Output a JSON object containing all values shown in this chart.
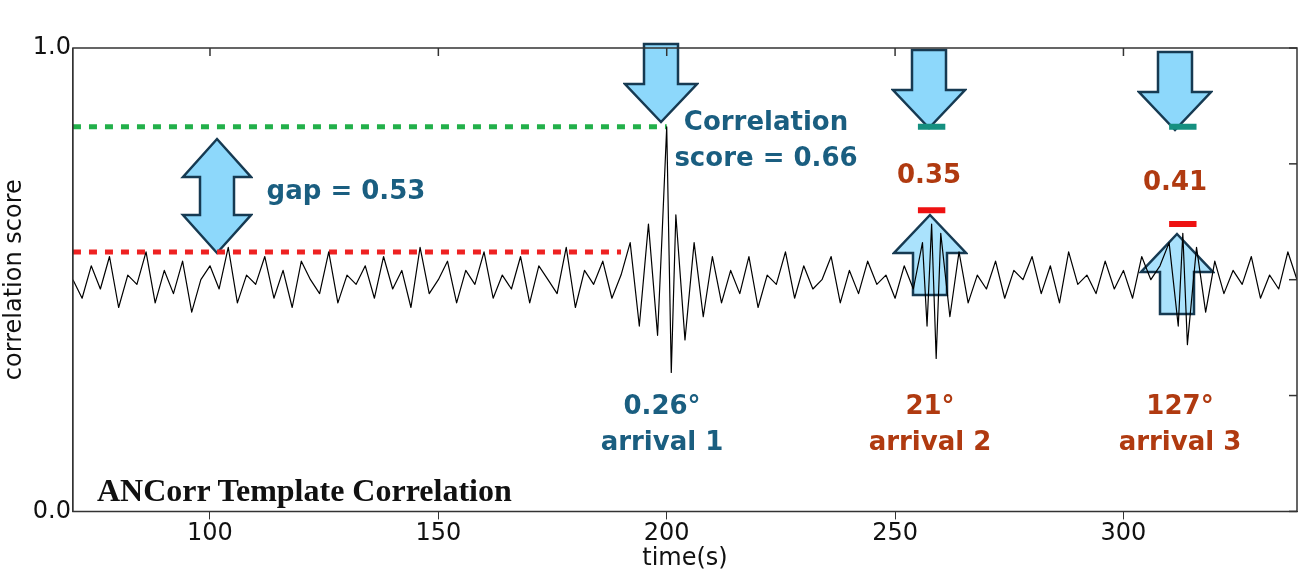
{
  "chart_data": {
    "type": "line",
    "title": "ANCorr Template Correlation",
    "xlabel": "time(s)",
    "ylabel": "correlation score",
    "xlim": [
      70,
      338
    ],
    "xticks": [
      100,
      150,
      200,
      250,
      300
    ],
    "ylim": [
      0,
      1
    ],
    "yticks": [
      {
        "value": 0,
        "label": "0.0"
      },
      {
        "value": 0.25,
        "label": null
      },
      {
        "value": 0.5,
        "label": null
      },
      {
        "value": 0.75,
        "label": null
      },
      {
        "value": 1,
        "label": "1.0"
      }
    ],
    "grid": false,
    "legend": false,
    "marker": "none",
    "series": [
      {
        "color": "#000000",
        "line_style": "solid",
        "x": [
          70,
          72,
          74,
          76,
          78,
          80,
          82,
          84,
          86,
          88,
          90,
          92,
          94,
          96,
          98,
          100,
          102,
          104,
          106,
          108,
          110,
          112,
          114,
          116,
          118,
          120,
          122,
          124,
          126,
          128,
          130,
          132,
          134,
          136,
          138,
          140,
          142,
          144,
          146,
          148,
          150,
          152,
          154,
          156,
          158,
          160,
          162,
          164,
          166,
          168,
          170,
          172,
          174,
          176,
          178,
          180,
          182,
          184,
          186,
          188,
          190,
          192,
          194,
          196,
          198,
          199,
          200,
          201,
          202,
          204,
          206,
          208,
          210,
          212,
          214,
          216,
          218,
          220,
          222,
          224,
          226,
          228,
          230,
          232,
          234,
          236,
          238,
          240,
          242,
          244,
          246,
          248,
          250,
          252,
          254,
          256,
          257,
          258,
          259,
          260,
          262,
          264,
          266,
          268,
          270,
          272,
          274,
          276,
          278,
          280,
          282,
          284,
          286,
          288,
          290,
          292,
          294,
          296,
          298,
          300,
          302,
          304,
          306,
          308,
          310,
          312,
          313,
          314,
          316,
          318,
          320,
          322,
          324,
          326,
          328,
          330,
          332,
          334,
          336,
          338
        ],
        "values": [
          0.5,
          0.46,
          0.53,
          0.48,
          0.55,
          0.44,
          0.51,
          0.49,
          0.56,
          0.45,
          0.52,
          0.47,
          0.54,
          0.43,
          0.5,
          0.53,
          0.48,
          0.57,
          0.45,
          0.51,
          0.49,
          0.55,
          0.46,
          0.52,
          0.44,
          0.54,
          0.5,
          0.47,
          0.56,
          0.45,
          0.51,
          0.49,
          0.53,
          0.46,
          0.55,
          0.48,
          0.52,
          0.44,
          0.57,
          0.47,
          0.5,
          0.54,
          0.45,
          0.52,
          0.49,
          0.56,
          0.46,
          0.51,
          0.48,
          0.55,
          0.45,
          0.53,
          0.5,
          0.47,
          0.57,
          0.44,
          0.52,
          0.49,
          0.54,
          0.46,
          0.51,
          0.58,
          0.4,
          0.62,
          0.38,
          0.6,
          0.83,
          0.3,
          0.64,
          0.37,
          0.58,
          0.42,
          0.55,
          0.45,
          0.52,
          0.47,
          0.55,
          0.44,
          0.51,
          0.49,
          0.56,
          0.46,
          0.53,
          0.48,
          0.5,
          0.55,
          0.45,
          0.52,
          0.47,
          0.54,
          0.49,
          0.51,
          0.46,
          0.53,
          0.48,
          0.58,
          0.4,
          0.62,
          0.33,
          0.6,
          0.42,
          0.56,
          0.45,
          0.51,
          0.48,
          0.54,
          0.46,
          0.52,
          0.5,
          0.55,
          0.47,
          0.53,
          0.45,
          0.56,
          0.49,
          0.51,
          0.47,
          0.54,
          0.48,
          0.52,
          0.46,
          0.55,
          0.5,
          0.53,
          0.58,
          0.4,
          0.6,
          0.36,
          0.57,
          0.43,
          0.54,
          0.47,
          0.52,
          0.49,
          0.55,
          0.46,
          0.51,
          0.48,
          0.56,
          0.5
        ]
      },
      {
        "color": "#22b04a",
        "line_style": "dashed",
        "x": [
          70,
          200
        ],
        "values": [
          0.83,
          0.83
        ]
      },
      {
        "color": "#ee2222",
        "line_style": "dashed",
        "x": [
          70,
          190
        ],
        "values": [
          0.56,
          0.56
        ]
      },
      {
        "color": "#159080",
        "line_style": "solid",
        "x": [
          255,
          261
        ],
        "values": [
          0.83,
          0.83
        ]
      },
      {
        "color": "#159080",
        "line_style": "solid",
        "x": [
          310,
          316
        ],
        "values": [
          0.83,
          0.83
        ]
      },
      {
        "color": "#ee1111",
        "line_style": "solid",
        "x": [
          255,
          261
        ],
        "values": [
          0.65,
          0.65
        ]
      },
      {
        "color": "#ee1111",
        "line_style": "solid",
        "x": [
          310,
          316
        ],
        "values": [
          0.62,
          0.62
        ]
      }
    ],
    "annotations": [
      "gap = 0.53",
      "Correlation\nscore = 0.66",
      "0.35",
      "0.41",
      "0.26°\narrival 1",
      "21°\narrival 2",
      "127°\narrival 3"
    ]
  }
}
